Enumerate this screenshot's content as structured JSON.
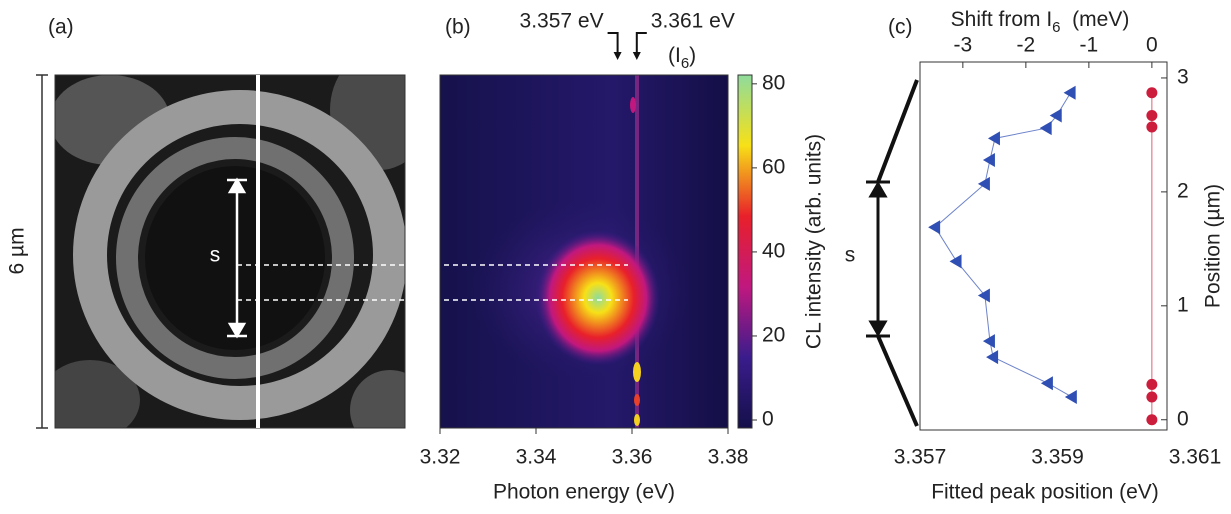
{
  "chart_data": [
    {
      "type": "image",
      "label": "(a)",
      "scale_label": "6 µm",
      "annotation": "s"
    },
    {
      "type": "heatmap",
      "label": "(b)",
      "xlabel": "Photon energy (eV)",
      "xlim": [
        3.32,
        3.38
      ],
      "xticks": [
        3.32,
        3.34,
        3.36,
        3.38
      ],
      "markers": [
        {
          "value": 3.357,
          "label": "3.357 eV"
        },
        {
          "value": 3.361,
          "label": "3.361 eV"
        }
      ],
      "marker_note": {
        "text": "(I",
        "sub": "6",
        "end": ")"
      },
      "colorbar_label": "CL intensity (arb. units)",
      "clim": [
        -1.9,
        82.1
      ],
      "cticks": [
        0,
        20,
        40,
        60,
        80
      ],
      "colormap": [
        "#14104a",
        "#3a1c8c",
        "#c0187f",
        "#e8202a",
        "#f7e017",
        "#8fdc9c"
      ]
    },
    {
      "type": "scatter",
      "label": "(c)",
      "annotation": "s",
      "xlabel": "Fitted peak position (eV)",
      "xlim": [
        3.357,
        3.361
      ],
      "xticks": [
        3.357,
        3.359,
        3.361
      ],
      "x2label": {
        "text": "Shift from I",
        "sub": "6",
        "end": "  (meV)"
      },
      "x2lim": [
        -3.68,
        0.24
      ],
      "x2ticks": [
        -3,
        -2,
        -1,
        0
      ],
      "ylabel": "Position (µm)",
      "ylim": [
        -0.09,
        3.14
      ],
      "yticks": [
        0,
        1,
        2,
        3
      ],
      "series": [
        {
          "color": "#2f4fb4",
          "marker": "triangle",
          "x": [
            -1.29,
            -1.51,
            -1.67,
            -2.49,
            -2.57,
            -2.65,
            -3.44,
            -3.1,
            -2.65,
            -2.57,
            -2.52,
            -1.65,
            -1.27
          ],
          "y": [
            2.87,
            2.67,
            2.56,
            2.47,
            2.28,
            2.07,
            1.69,
            1.39,
            1.09,
            0.69,
            0.55,
            0.32,
            0.2
          ]
        },
        {
          "color": "#cc1e3c",
          "marker": "circle",
          "x": [
            0,
            0,
            0,
            0,
            0,
            0
          ],
          "y": [
            2.87,
            2.67,
            2.57,
            0.31,
            0.2,
            0.0
          ]
        }
      ]
    }
  ]
}
